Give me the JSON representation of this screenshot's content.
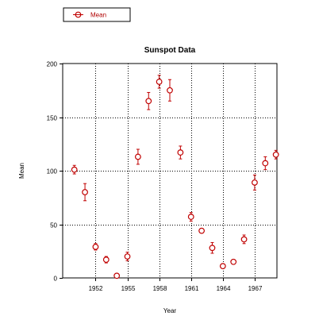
{
  "chart_data": {
    "type": "scatter",
    "title": "Sunspot Data",
    "xlabel": "Year",
    "ylabel": "Mean",
    "xlim": [
      1948.9,
      1969.1
    ],
    "ylim": [
      0,
      200
    ],
    "xticks": [
      1952,
      1955,
      1958,
      1961,
      1964,
      1967
    ],
    "yticks": [
      0,
      50,
      100,
      150,
      200
    ],
    "grid": true,
    "legend_position": "top-left",
    "marker": "open-circle",
    "error_bars": true,
    "color": "#c00000",
    "series": [
      {
        "name": "Mean",
        "x": [
          1950,
          1951,
          1952,
          1953,
          1954,
          1955,
          1956,
          1957,
          1958,
          1959,
          1960,
          1961,
          1962,
          1963,
          1964,
          1965,
          1966,
          1967,
          1968,
          1969
        ],
        "y": [
          101,
          80,
          29,
          17,
          2,
          20,
          113,
          165,
          183,
          175,
          117,
          57,
          44,
          28,
          11,
          15,
          36,
          89,
          107,
          115
        ],
        "error": [
          4,
          8,
          3,
          3,
          2,
          4,
          7,
          8,
          6,
          10,
          6,
          4,
          2,
          5,
          2,
          2,
          4,
          7,
          6,
          4
        ]
      }
    ]
  }
}
